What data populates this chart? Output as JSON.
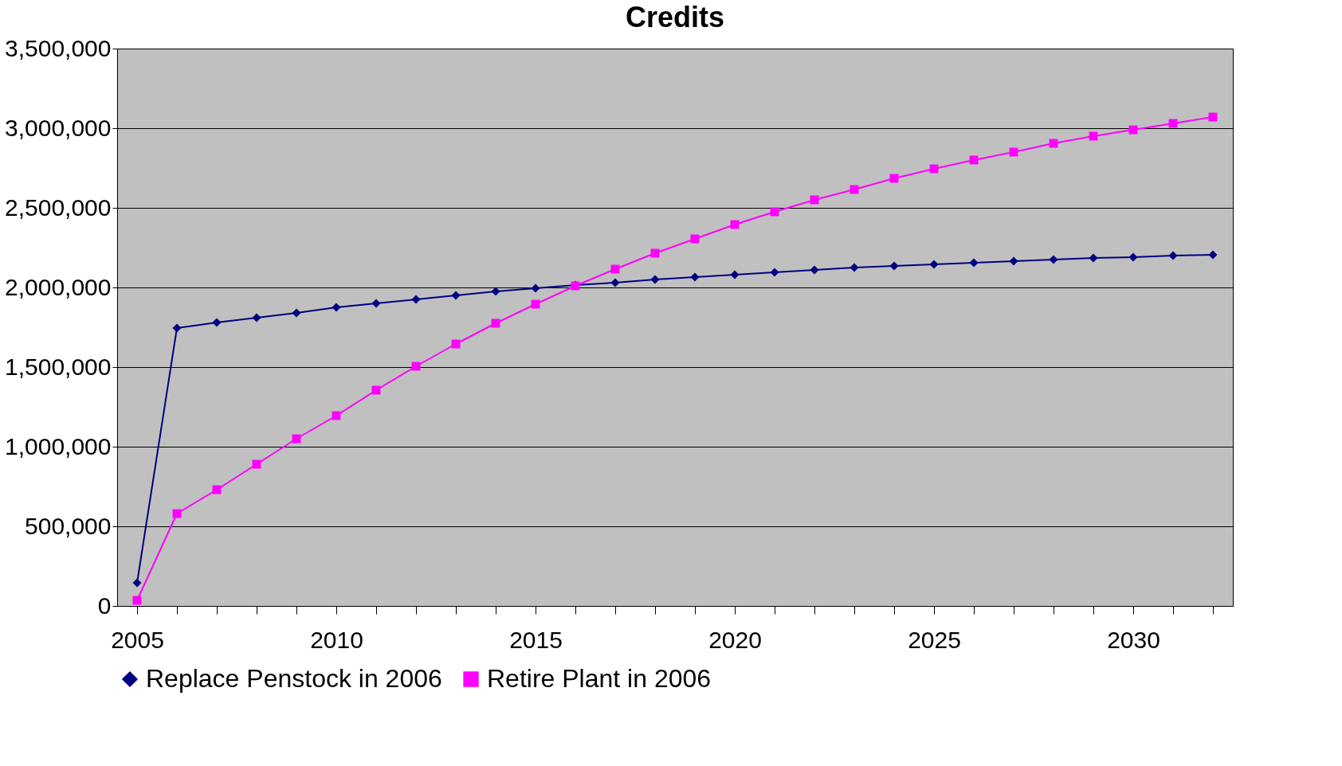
{
  "chart_data": {
    "type": "line",
    "title": "Credits",
    "categories": [
      "2005",
      null,
      null,
      null,
      null,
      "2010",
      null,
      null,
      null,
      null,
      "2015",
      null,
      null,
      null,
      null,
      "2020",
      null,
      null,
      null,
      null,
      "2025",
      null,
      null,
      null,
      null,
      "2030",
      null,
      null
    ],
    "series": [
      {
        "name": "Replace Penstock in 2006",
        "color": "#000080",
        "marker": "diamond",
        "values": [
          145000,
          1745000,
          1780000,
          1810000,
          1840000,
          1875000,
          1900000,
          1925000,
          1950000,
          1975000,
          1995000,
          2015000,
          2030000,
          2050000,
          2065000,
          2080000,
          2095000,
          2110000,
          2125000,
          2135000,
          2145000,
          2155000,
          2165000,
          2175000,
          2185000,
          2190000,
          2200000,
          2205000
        ]
      },
      {
        "name": "Retire Plant in 2006",
        "color": "#ff00ff",
        "marker": "square",
        "values": [
          35000,
          580000,
          730000,
          890000,
          1050000,
          1195000,
          1355000,
          1505000,
          1645000,
          1775000,
          1895000,
          2010000,
          2115000,
          2215000,
          2305000,
          2395000,
          2475000,
          2550000,
          2615000,
          2685000,
          2745000,
          2800000,
          2850000,
          2905000,
          2950000,
          2990000,
          3030000,
          3070000
        ]
      }
    ],
    "ylim": [
      0,
      3500000
    ],
    "yticks": [
      0,
      {
        "value": 500000,
        "label": "500,000"
      },
      {
        "value": 1000000,
        "label": "1,000,000"
      },
      {
        "value": 1500000,
        "label": "1,500,000"
      },
      {
        "value": 2000000,
        "label": "2,000,000"
      },
      {
        "value": 2500000,
        "label": "2,500,000"
      },
      {
        "value": 3000000,
        "label": "3,000,000"
      },
      {
        "value": 3500000,
        "label": "3,500,000"
      }
    ],
    "grid": "y",
    "legend": "bottom",
    "line_style": "solid"
  }
}
